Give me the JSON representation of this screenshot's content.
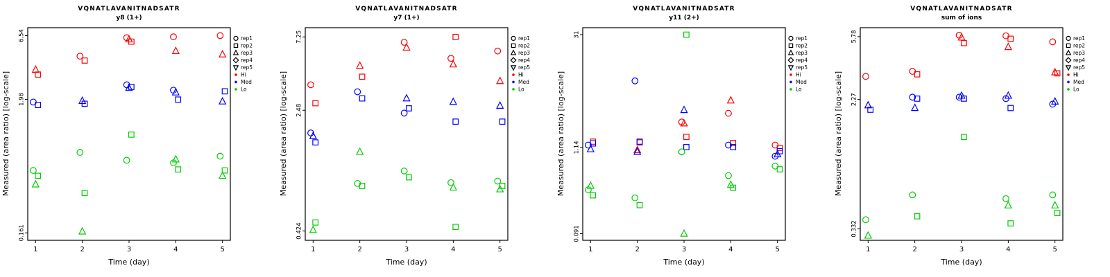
{
  "figure": {
    "xlabel": "Time (day)",
    "ylabel": "Measured (area ratio) [log-scale]",
    "x_ticks": [
      1,
      2,
      3,
      4,
      5
    ],
    "colors": {
      "Hi": "#FF0000",
      "Med": "#0000FF",
      "Lo": "#00CD00",
      "axis": "#000000"
    },
    "legend": {
      "reps": [
        {
          "label": "rep1",
          "symbol": "circle"
        },
        {
          "label": "rep2",
          "symbol": "square"
        },
        {
          "label": "rep3",
          "symbol": "triangle-up"
        },
        {
          "label": "rep4",
          "symbol": "diamond"
        },
        {
          "label": "rep5",
          "symbol": "triangle-down"
        }
      ],
      "groups": [
        {
          "label": "Hi",
          "color": "#FF0000"
        },
        {
          "label": "Med",
          "color": "#0000FF"
        },
        {
          "label": "Lo",
          "color": "#00CD00"
        }
      ]
    }
  },
  "chart_data": [
    {
      "type": "scatter",
      "title": "VQNATLAVANITNADSATR",
      "subtitle": "y8 (1+)",
      "xlabel": "Time (day)",
      "ylabel": "Measured (area ratio) [log-scale]",
      "x_range": [
        1,
        5
      ],
      "y_scale": "log",
      "y_ticks": [
        0.161,
        1.98,
        6.54
      ],
      "y_lim": [
        0.14,
        7.6
      ],
      "point_format": [
        "day",
        "value",
        "group",
        "rep"
      ],
      "points": [
        [
          1,
          3.45,
          "Hi",
          3
        ],
        [
          1,
          3.15,
          "Hi",
          2
        ],
        [
          2,
          4.45,
          "Hi",
          1
        ],
        [
          2,
          4.1,
          "Hi",
          2
        ],
        [
          3,
          6.3,
          "Hi",
          1
        ],
        [
          3,
          5.85,
          "Hi",
          2
        ],
        [
          3,
          6.1,
          "Hi",
          3
        ],
        [
          4,
          6.4,
          "Hi",
          1
        ],
        [
          4,
          4.9,
          "Hi",
          3
        ],
        [
          5,
          6.55,
          "Hi",
          1
        ],
        [
          5,
          4.6,
          "Hi",
          3
        ],
        [
          1,
          1.88,
          "Med",
          1
        ],
        [
          1,
          1.78,
          "Med",
          2
        ],
        [
          2,
          1.82,
          "Med",
          2
        ],
        [
          2,
          1.92,
          "Med",
          3
        ],
        [
          3,
          2.6,
          "Med",
          1
        ],
        [
          3,
          2.5,
          "Med",
          2
        ],
        [
          3,
          2.45,
          "Med",
          3
        ],
        [
          4,
          2.35,
          "Med",
          1
        ],
        [
          4,
          1.97,
          "Med",
          2
        ],
        [
          4,
          2.25,
          "Med",
          3
        ],
        [
          5,
          2.3,
          "Med",
          2
        ],
        [
          5,
          1.9,
          "Med",
          3
        ],
        [
          1,
          0.52,
          "Lo",
          1
        ],
        [
          1,
          0.47,
          "Lo",
          2
        ],
        [
          1,
          0.4,
          "Lo",
          3
        ],
        [
          2,
          0.73,
          "Lo",
          1
        ],
        [
          2,
          0.34,
          "Lo",
          2
        ],
        [
          2,
          0.165,
          "Lo",
          3
        ],
        [
          3,
          1.02,
          "Lo",
          2
        ],
        [
          3,
          0.63,
          "Lo",
          1
        ],
        [
          4,
          0.6,
          "Lo",
          1
        ],
        [
          4,
          0.53,
          "Lo",
          2
        ],
        [
          4,
          0.64,
          "Lo",
          3
        ],
        [
          5,
          0.68,
          "Lo",
          1
        ],
        [
          5,
          0.52,
          "Lo",
          2
        ],
        [
          5,
          0.47,
          "Lo",
          3
        ]
      ]
    },
    {
      "type": "scatter",
      "title": "VQNATLAVANITNADSATR",
      "subtitle": "y7 (1+)",
      "xlabel": "Time (day)",
      "ylabel": "Measured (area ratio) [log-scale]",
      "x_range": [
        1,
        5
      ],
      "y_scale": "log",
      "y_ticks": [
        0.424,
        2.48,
        7.25
      ],
      "y_lim": [
        0.37,
        8.3
      ],
      "point_format": [
        "day",
        "value",
        "group",
        "rep"
      ],
      "points": [
        [
          1,
          3.6,
          "Hi",
          1
        ],
        [
          1,
          2.75,
          "Hi",
          2
        ],
        [
          2,
          4.75,
          "Hi",
          3
        ],
        [
          2,
          4.05,
          "Hi",
          2
        ],
        [
          3,
          6.7,
          "Hi",
          1
        ],
        [
          3,
          6.2,
          "Hi",
          3
        ],
        [
          4,
          7.25,
          "Hi",
          2
        ],
        [
          4,
          5.3,
          "Hi",
          1
        ],
        [
          4,
          4.85,
          "Hi",
          3
        ],
        [
          5,
          5.9,
          "Hi",
          1
        ],
        [
          5,
          3.8,
          "Hi",
          3
        ],
        [
          1,
          1.78,
          "Med",
          1
        ],
        [
          1,
          1.7,
          "Med",
          3
        ],
        [
          1,
          1.55,
          "Med",
          2
        ],
        [
          2,
          3.25,
          "Med",
          1
        ],
        [
          2,
          2.95,
          "Med",
          2
        ],
        [
          3,
          2.95,
          "Med",
          3
        ],
        [
          3,
          2.55,
          "Med",
          2
        ],
        [
          3,
          2.38,
          "Med",
          1
        ],
        [
          4,
          2.8,
          "Med",
          3
        ],
        [
          4,
          2.1,
          "Med",
          2
        ],
        [
          5,
          2.65,
          "Med",
          3
        ],
        [
          5,
          2.1,
          "Med",
          2
        ],
        [
          1,
          0.48,
          "Lo",
          2
        ],
        [
          1,
          0.43,
          "Lo",
          3
        ],
        [
          2,
          1.35,
          "Lo",
          3
        ],
        [
          2,
          0.85,
          "Lo",
          1
        ],
        [
          2,
          0.82,
          "Lo",
          2
        ],
        [
          3,
          1.02,
          "Lo",
          1
        ],
        [
          3,
          0.93,
          "Lo",
          2
        ],
        [
          4,
          0.86,
          "Lo",
          1
        ],
        [
          4,
          0.8,
          "Lo",
          3
        ],
        [
          4,
          0.45,
          "Lo",
          2
        ],
        [
          5,
          0.88,
          "Lo",
          1
        ],
        [
          5,
          0.82,
          "Lo",
          2
        ],
        [
          5,
          0.78,
          "Lo",
          3
        ]
      ]
    },
    {
      "type": "scatter",
      "title": "VQNATLAVANITNADSATR",
      "subtitle": "y11 (2+)",
      "xlabel": "Time (day)",
      "ylabel": "Measured (area ratio) [log-scale]",
      "x_range": [
        1,
        5
      ],
      "y_scale": "log",
      "y_ticks": [
        0.091,
        1.14,
        31
      ],
      "y_lim": [
        0.075,
        38
      ],
      "point_format": [
        "day",
        "value",
        "group",
        "rep"
      ],
      "points": [
        [
          1,
          1.35,
          "Hi",
          2
        ],
        [
          2,
          1.32,
          "Hi",
          2
        ],
        [
          2,
          1.05,
          "Hi",
          3
        ],
        [
          3,
          2.4,
          "Hi",
          1
        ],
        [
          3,
          2.3,
          "Hi",
          3
        ],
        [
          3,
          1.55,
          "Hi",
          2
        ],
        [
          4,
          4.5,
          "Hi",
          3
        ],
        [
          4,
          3.1,
          "Hi",
          1
        ],
        [
          4,
          1.3,
          "Hi",
          2
        ],
        [
          5,
          1.22,
          "Hi",
          1
        ],
        [
          5,
          1.12,
          "Hi",
          2
        ],
        [
          1,
          1.22,
          "Med",
          1
        ],
        [
          1,
          1.28,
          "Med",
          2
        ],
        [
          1,
          1.08,
          "Med",
          3
        ],
        [
          2,
          8.0,
          "Med",
          1
        ],
        [
          2,
          1.35,
          "Med",
          2
        ],
        [
          2,
          1.0,
          "Med",
          3
        ],
        [
          3,
          3.4,
          "Med",
          3
        ],
        [
          3,
          1.15,
          "Med",
          2
        ],
        [
          4,
          1.22,
          "Med",
          1
        ],
        [
          4,
          1.15,
          "Med",
          2
        ],
        [
          5,
          1.02,
          "Med",
          2
        ],
        [
          5,
          0.93,
          "Med",
          3
        ],
        [
          5,
          0.88,
          "Med",
          1
        ],
        [
          1,
          0.37,
          "Lo",
          3
        ],
        [
          1,
          0.33,
          "Lo",
          1
        ],
        [
          1,
          0.28,
          "Lo",
          2
        ],
        [
          2,
          0.26,
          "Lo",
          1
        ],
        [
          2,
          0.21,
          "Lo",
          2
        ],
        [
          3,
          31,
          "Lo",
          2
        ],
        [
          3,
          1.0,
          "Lo",
          1
        ],
        [
          3,
          0.091,
          "Lo",
          3
        ],
        [
          4,
          0.5,
          "Lo",
          1
        ],
        [
          4,
          0.38,
          "Lo",
          3
        ],
        [
          4,
          0.35,
          "Lo",
          2
        ],
        [
          5,
          0.66,
          "Lo",
          1
        ],
        [
          5,
          0.6,
          "Lo",
          2
        ]
      ]
    },
    {
      "type": "scatter",
      "title": "VQNATLAVANITNADSATR",
      "subtitle": "sum of ions",
      "xlabel": "Time (day)",
      "ylabel": "Measured (area ratio) [log-scale]",
      "x_range": [
        1,
        5
      ],
      "y_scale": "log",
      "y_ticks": [
        0.332,
        2.27,
        5.78
      ],
      "y_lim": [
        0.28,
        6.6
      ],
      "point_format": [
        "day",
        "value",
        "group",
        "rep"
      ],
      "points": [
        [
          1,
          3.2,
          "Hi",
          1
        ],
        [
          2,
          3.45,
          "Hi",
          1
        ],
        [
          2,
          3.3,
          "Hi",
          2
        ],
        [
          3,
          5.9,
          "Hi",
          1
        ],
        [
          3,
          5.25,
          "Hi",
          2
        ],
        [
          3,
          5.7,
          "Hi",
          3
        ],
        [
          4,
          5.85,
          "Hi",
          1
        ],
        [
          4,
          5.6,
          "Hi",
          2
        ],
        [
          4,
          4.95,
          "Hi",
          3
        ],
        [
          5,
          5.35,
          "Hi",
          1
        ],
        [
          5,
          3.4,
          "Hi",
          3
        ],
        [
          5,
          3.35,
          "Hi",
          2
        ],
        [
          1,
          1.95,
          "Med",
          2
        ],
        [
          1,
          2.08,
          "Med",
          3
        ],
        [
          2,
          2.35,
          "Med",
          1
        ],
        [
          2,
          2.3,
          "Med",
          2
        ],
        [
          2,
          2.0,
          "Med",
          3
        ],
        [
          3,
          2.4,
          "Med",
          3
        ],
        [
          3,
          2.35,
          "Med",
          1
        ],
        [
          3,
          2.3,
          "Med",
          2
        ],
        [
          4,
          2.4,
          "Med",
          3
        ],
        [
          4,
          2.3,
          "Med",
          1
        ],
        [
          4,
          2.0,
          "Med",
          2
        ],
        [
          5,
          2.2,
          "Med",
          3
        ],
        [
          5,
          2.12,
          "Med",
          1
        ],
        [
          1,
          0.38,
          "Lo",
          1
        ],
        [
          1,
          0.3,
          "Lo",
          3
        ],
        [
          2,
          0.55,
          "Lo",
          1
        ],
        [
          2,
          0.4,
          "Lo",
          2
        ],
        [
          3,
          1.3,
          "Lo",
          2
        ],
        [
          4,
          0.52,
          "Lo",
          1
        ],
        [
          4,
          0.47,
          "Lo",
          3
        ],
        [
          4,
          0.36,
          "Lo",
          2
        ],
        [
          5,
          0.55,
          "Lo",
          1
        ],
        [
          5,
          0.47,
          "Lo",
          3
        ],
        [
          5,
          0.42,
          "Lo",
          2
        ]
      ]
    }
  ]
}
